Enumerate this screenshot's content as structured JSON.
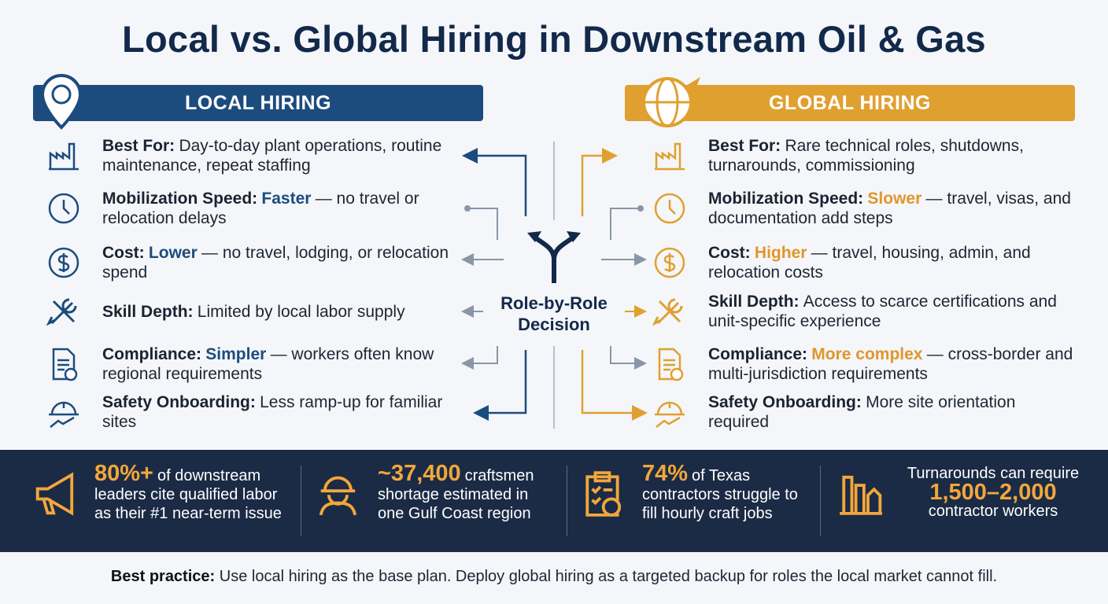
{
  "title": "Local vs. Global Hiring in Downstream Oil & Gas",
  "local": {
    "header": "LOCAL HIRING",
    "items": [
      {
        "label": "Best For:",
        "text": "Day-to-day plant operations, routine maintenance, repeat staffing"
      },
      {
        "label": "Mobilization Speed:",
        "highlight": "Faster",
        "text": "— no travel or relocation delays"
      },
      {
        "label": "Cost:",
        "highlight": "Lower",
        "text": "— no travel, lodging, or relocation spend"
      },
      {
        "label": "Skill Depth:",
        "text": "Limited by local labor supply"
      },
      {
        "label": "Compliance:",
        "highlight": "Simpler",
        "text": "— workers often know regional requirements"
      },
      {
        "label": "Safety Onboarding:",
        "text": "Less ramp-up for familiar sites"
      }
    ]
  },
  "global": {
    "header": "GLOBAL HIRING",
    "items": [
      {
        "label": "Best For:",
        "text": "Rare technical roles, shutdowns, turnarounds, commissioning"
      },
      {
        "label": "Mobilization Speed:",
        "highlight": "Slower",
        "text": "— travel, visas, and documentation add steps"
      },
      {
        "label": "Cost:",
        "highlight": "Higher",
        "text": "— travel, housing, admin, and relocation costs"
      },
      {
        "label": "Skill Depth:",
        "text": "Access to scarce certifications and unit-specific experience"
      },
      {
        "label": "Compliance:",
        "highlight": "More complex",
        "text": "— cross-border and multi-jurisdiction requirements"
      },
      {
        "label": "Safety Onboarding:",
        "text": "More site orientation required"
      }
    ]
  },
  "center": "Role-by-Role Decision",
  "stats": [
    {
      "highlight": "80%+",
      "text": "of downstream leaders cite qualified labor as their #1 near-term issue"
    },
    {
      "highlight": "~37,400",
      "text": "craftsmen shortage estimated in one Gulf Coast region"
    },
    {
      "highlight": "74%",
      "text": "of Texas contractors struggle to fill hourly craft jobs"
    },
    {
      "pre": "Turnarounds can require",
      "highlight": "1,500–2,000",
      "text": "contractor workers"
    }
  ],
  "footer": {
    "label": "Best practice:",
    "text": "Use local hiring as the base plan. Deploy global hiring as a targeted backup for roles the local market cannot fill."
  }
}
